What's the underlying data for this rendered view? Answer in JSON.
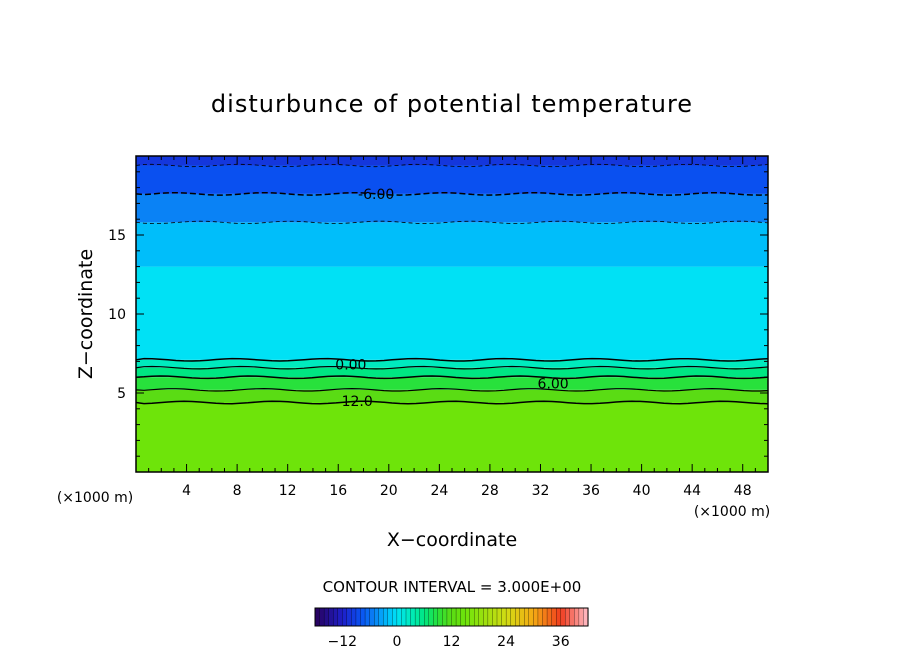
{
  "chart_data": {
    "type": "heatmap",
    "title": "disturbunce of potential temperature",
    "xlabel": "X−coordinate",
    "ylabel": "Z−coordinate",
    "x_unit_left": "(×1000 m)",
    "x_unit_right": "(×1000 m)",
    "xlim": [
      0,
      50
    ],
    "ylim": [
      0,
      20
    ],
    "x_ticks": [
      4,
      8,
      12,
      16,
      20,
      24,
      28,
      32,
      36,
      40,
      44,
      48
    ],
    "x_tick_labels": [
      "4",
      "8",
      "12",
      "16",
      "20",
      "24",
      "28",
      "32",
      "36",
      "40",
      "44",
      "48"
    ],
    "y_ticks": [
      5,
      10,
      15
    ],
    "y_tick_labels": [
      "5",
      "10",
      "15"
    ],
    "contour_interval_text": "CONTOUR INTERVAL = 3.000E+00",
    "contour_labels": [
      {
        "text": "-6.00",
        "x": 19,
        "z": 17.6
      },
      {
        "text": "0.00",
        "x": 17,
        "z": 6.8
      },
      {
        "text": "6.00",
        "x": 33,
        "z": 5.6
      },
      {
        "text": "12.0",
        "x": 17.5,
        "z": 4.5
      }
    ],
    "field_bands": [
      {
        "z_from": 0.0,
        "z_to": 4.4,
        "value": 15
      },
      {
        "z_from": 4.4,
        "z_to": 5.2,
        "value": 12
      },
      {
        "z_from": 5.2,
        "z_to": 6.0,
        "value": 9
      },
      {
        "z_from": 6.0,
        "z_to": 6.6,
        "value": 6
      },
      {
        "z_from": 6.6,
        "z_to": 7.1,
        "value": 3
      },
      {
        "z_from": 7.1,
        "z_to": 13.0,
        "value": 0
      },
      {
        "z_from": 13.0,
        "z_to": 15.8,
        "value": -2
      },
      {
        "z_from": 15.8,
        "z_to": 17.6,
        "value": -5
      },
      {
        "z_from": 17.6,
        "z_to": 19.4,
        "value": -8
      },
      {
        "z_from": 19.4,
        "z_to": 20.0,
        "value": -10
      }
    ],
    "colorbar": {
      "min": -18,
      "max": 42,
      "tick_values": [
        -12,
        0,
        12,
        24,
        36
      ],
      "tick_labels": [
        "−12",
        "0",
        "12",
        "24",
        "36"
      ]
    }
  }
}
